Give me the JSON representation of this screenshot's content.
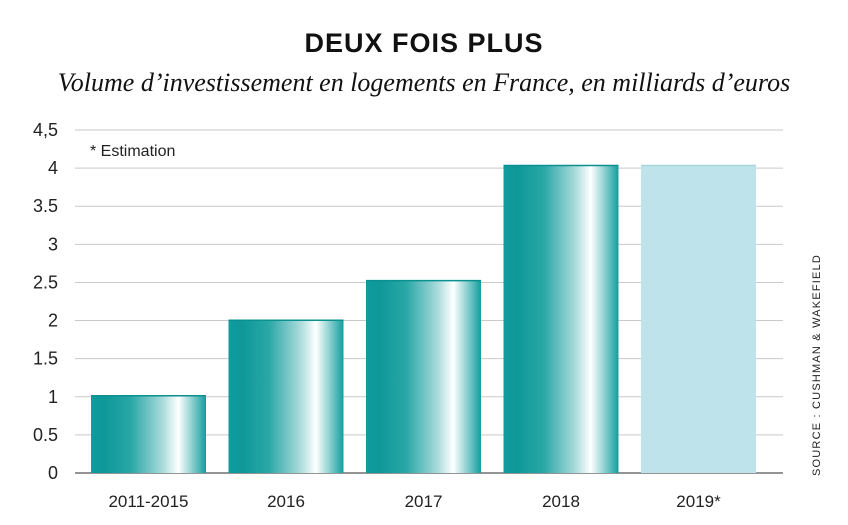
{
  "header": {
    "title": "DEUX FOIS PLUS",
    "subtitle": "Volume d’investissement en logements en France, en milliards d’euros"
  },
  "note": "* Estimation",
  "source": "SOURCE : CUSHMAN & WAKEFIELD",
  "colors": {
    "bar_dark": "#0f9c9c",
    "bar_light": "#ffffff",
    "estimate": "#bfe3ea",
    "grid": "#c9c9c9"
  },
  "chart_data": {
    "type": "bar",
    "categories": [
      "2011-2015",
      "2016",
      "2017",
      "2018",
      "2019*"
    ],
    "values": [
      1.02,
      2.01,
      2.53,
      4.04,
      4.04
    ],
    "estimated": [
      false,
      false,
      false,
      false,
      true
    ],
    "title": "DEUX FOIS PLUS",
    "subtitle": "Volume d’investissement en logements en France, en milliards d’euros",
    "xlabel": "",
    "ylabel": "",
    "ylim": [
      0,
      4.5
    ],
    "y_ticks": [
      0,
      0.5,
      1,
      1.5,
      2,
      2.5,
      3,
      3.5,
      4,
      4.5
    ],
    "y_tick_labels": [
      "0",
      "0.5",
      "1",
      "1.5",
      "2",
      "2.5",
      "3",
      "3.5",
      "4",
      "4,5"
    ],
    "grid": true,
    "legend": "none"
  }
}
